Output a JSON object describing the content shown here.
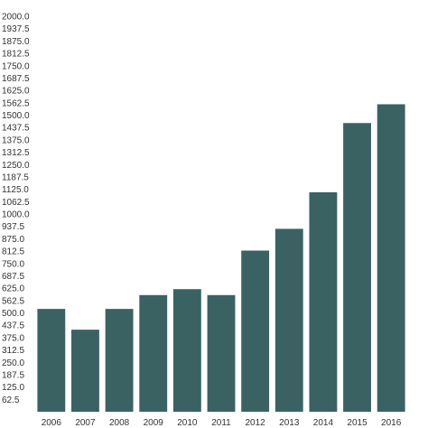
{
  "chart_data": {
    "type": "bar",
    "title": "",
    "xlabel": "",
    "ylabel": "",
    "categories": [
      "2006",
      "2007",
      "2008",
      "2009",
      "2010",
      "2011",
      "2012",
      "2013",
      "2014",
      "2015",
      "2016"
    ],
    "values": [
      520,
      415,
      520,
      590,
      620,
      590,
      815,
      925,
      1110,
      1460,
      1555
    ],
    "ylim": [
      0,
      2000
    ],
    "yticks": [
      "62.5",
      "125.0",
      "187.5",
      "250.0",
      "312.5",
      "375.0",
      "437.5",
      "500.0",
      "562.5",
      "625.0",
      "687.5",
      "750.0",
      "812.5",
      "875.0",
      "937.5",
      "1000.0",
      "1062.5",
      "1125.0",
      "1187.5",
      "1250.0",
      "1312.5",
      "1375.0",
      "1437.5",
      "1500.0",
      "1562.5",
      "1625.0",
      "1687.5",
      "1750.0",
      "1812.5",
      "1875.0",
      "1937.5",
      "2000.0"
    ],
    "bar_color": "#3b6262",
    "grid": false,
    "legend": "none"
  }
}
